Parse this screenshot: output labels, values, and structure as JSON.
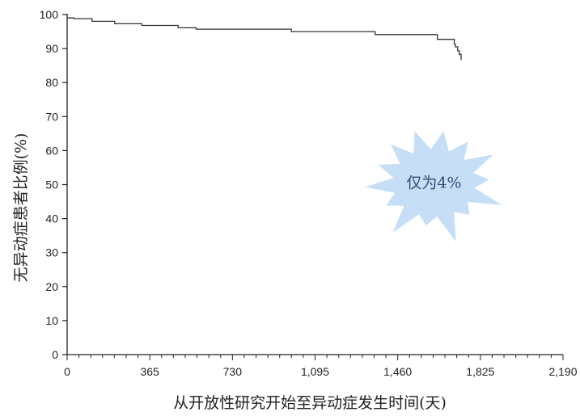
{
  "chart_data": {
    "type": "line",
    "xlabel": "从开放性研究开始至异动症发生时间(天)",
    "ylabel": "无异动症患者比例(%)",
    "xlim": [
      0,
      2190
    ],
    "ylim": [
      0,
      100
    ],
    "xticks": [
      "0",
      "365",
      "730",
      "1,095",
      "1,460",
      "1,825",
      "2,190"
    ],
    "yticks": [
      "0",
      "10",
      "20",
      "30",
      "40",
      "50",
      "60",
      "70",
      "80",
      "90",
      "100"
    ],
    "grid": false,
    "series": [
      {
        "style": "step",
        "color": "#333333",
        "x": [
          0,
          30,
          110,
          210,
          330,
          490,
          570,
          990,
          1360,
          1635,
          1710,
          1715,
          1725,
          1732,
          1740
        ],
        "y": [
          99,
          98.8,
          98,
          97.3,
          96.8,
          96.1,
          95.7,
          95,
          94.1,
          92.7,
          91.2,
          90.5,
          89.3,
          88.3,
          86.6
        ]
      }
    ],
    "annotation": {
      "text": "仅为4%",
      "x": 1620,
      "y": 50.5,
      "color": "#bcd9f5",
      "shape": "starburst"
    }
  }
}
